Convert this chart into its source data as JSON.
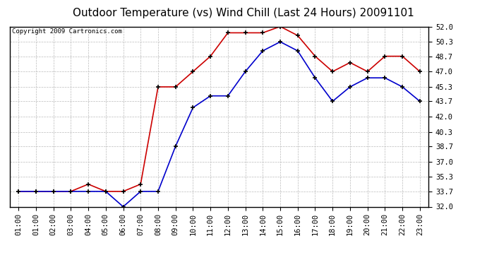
{
  "title": "Outdoor Temperature (vs) Wind Chill (Last 24 Hours) 20091101",
  "copyright": "Copyright 2009 Cartronics.com",
  "x_labels": [
    "01:00",
    "01:00",
    "02:00",
    "03:00",
    "04:00",
    "05:00",
    "06:00",
    "07:00",
    "08:00",
    "09:00",
    "10:00",
    "11:00",
    "12:00",
    "13:00",
    "14:00",
    "15:00",
    "16:00",
    "17:00",
    "18:00",
    "19:00",
    "20:00",
    "21:00",
    "22:00",
    "23:00"
  ],
  "temp_red": [
    33.7,
    33.7,
    33.7,
    33.7,
    34.5,
    33.7,
    33.7,
    34.5,
    45.3,
    45.3,
    47.0,
    48.7,
    51.3,
    51.3,
    51.3,
    52.0,
    51.0,
    48.7,
    47.0,
    48.0,
    47.0,
    48.7,
    48.7,
    47.0
  ],
  "wind_blue": [
    33.7,
    33.7,
    33.7,
    33.7,
    33.7,
    33.7,
    32.0,
    33.7,
    33.7,
    38.7,
    43.0,
    44.3,
    44.3,
    47.0,
    49.3,
    50.3,
    49.3,
    46.3,
    43.7,
    45.3,
    46.3,
    46.3,
    45.3,
    43.7
  ],
  "ylim_min": 32.0,
  "ylim_max": 52.0,
  "yticks": [
    32.0,
    33.7,
    35.3,
    37.0,
    38.7,
    40.3,
    42.0,
    43.7,
    45.3,
    47.0,
    48.7,
    50.3,
    52.0
  ],
  "red_color": "#cc0000",
  "blue_color": "#0000cc",
  "bg_color": "#ffffff",
  "plot_bg": "#ffffff",
  "grid_color": "#bbbbbb",
  "title_fontsize": 11,
  "copyright_fontsize": 6.5,
  "tick_fontsize": 7.5
}
